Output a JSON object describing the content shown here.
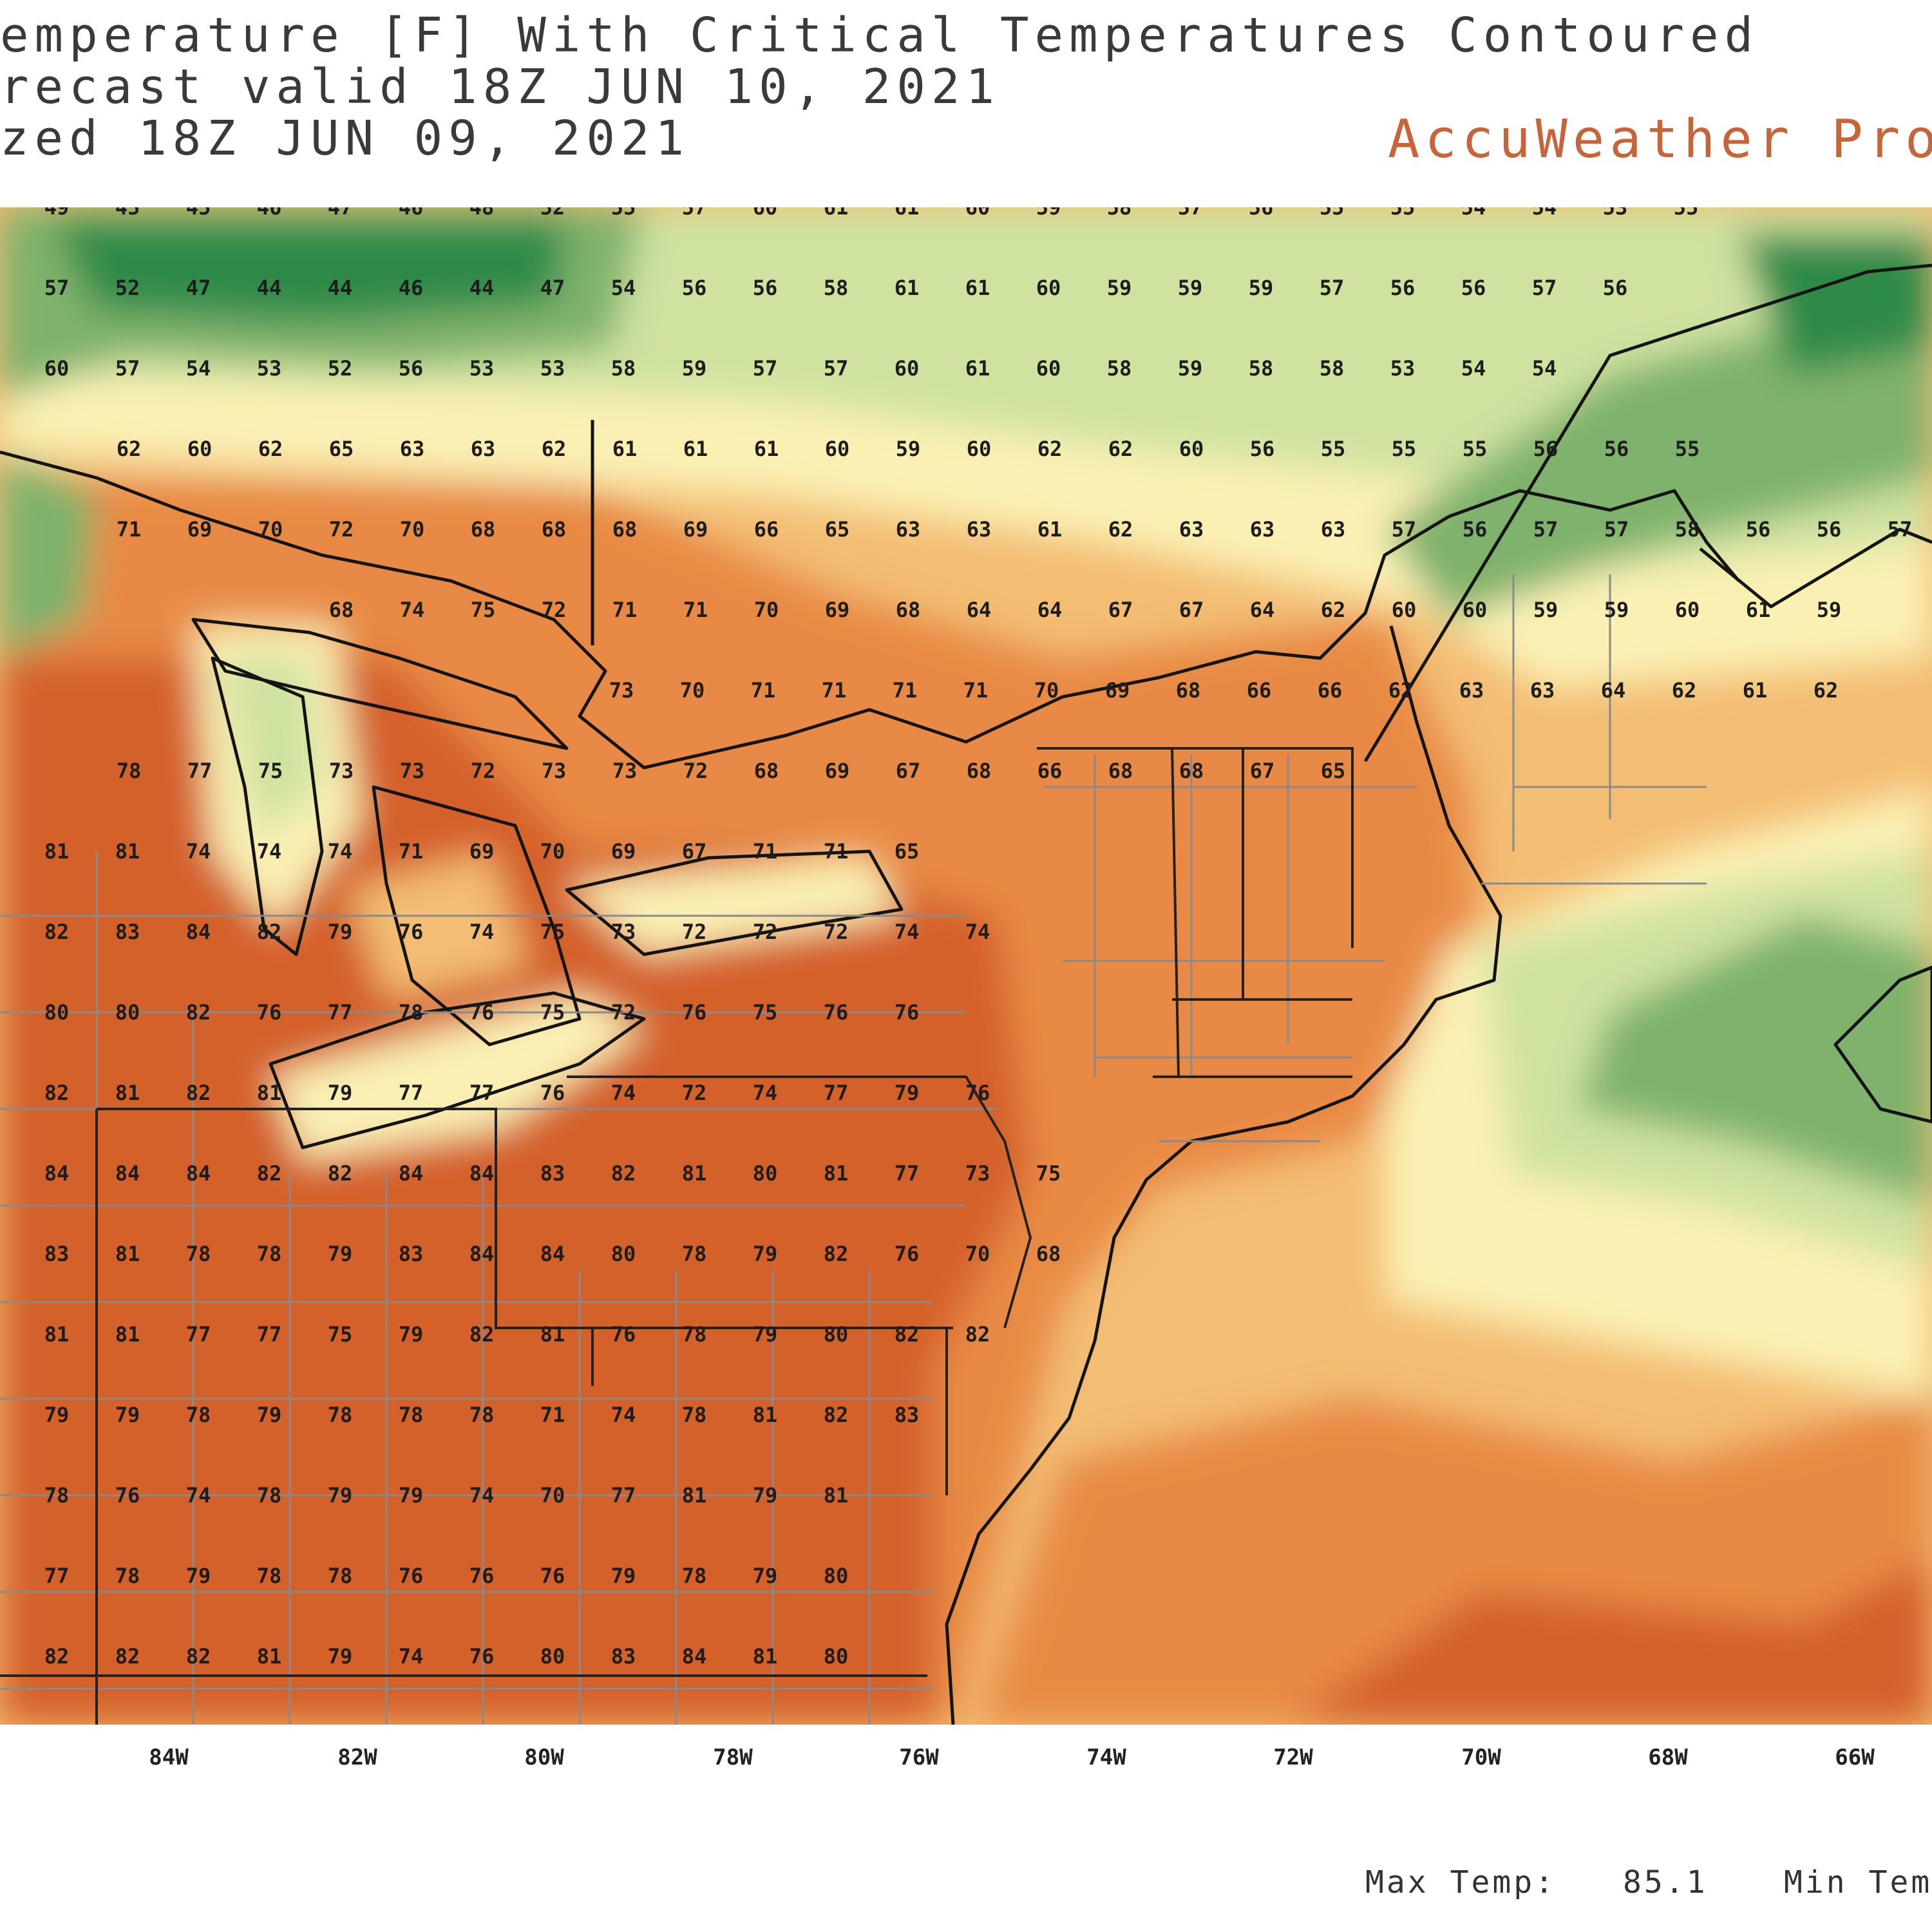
{
  "header": {
    "line1": "emperature [F] With Critical Temperatures Contoured",
    "line2": "recast valid 18Z JUN 10, 2021",
    "line3": "zed 18Z JUN 09, 2021",
    "brand": "AccuWeather Pro"
  },
  "axis": {
    "longitude_labels": [
      "84W",
      "82W",
      "80W",
      "78W",
      "76W",
      "74W",
      "72W",
      "70W",
      "68W",
      "66W"
    ]
  },
  "stats": {
    "max_label": "Max Temp:",
    "max_value": "85.1",
    "min_label": "Min Tem"
  },
  "colors": {
    "hot": "#d4612a",
    "warm": "#e88a45",
    "mild": "#f3bd74",
    "cool": "#faf0b4",
    "cooler": "#cfe2a0",
    "cold": "#7fb26c",
    "coldest": "#2f8a48"
  },
  "temperature_rows": [
    [
      "49",
      "45",
      "45",
      "46",
      "47",
      "46",
      "48",
      "52",
      "55",
      "57",
      "60",
      "61",
      "61",
      "60",
      "59",
      "58",
      "57",
      "56",
      "55",
      "55",
      "54",
      "54",
      "53",
      "55"
    ],
    [
      "57",
      "52",
      "47",
      "44",
      "44",
      "46",
      "44",
      "47",
      "54",
      "56",
      "56",
      "58",
      "61",
      "61",
      "60",
      "59",
      "59",
      "59",
      "57",
      "56",
      "56",
      "57",
      "56"
    ],
    [
      "60",
      "57",
      "54",
      "53",
      "52",
      "56",
      "53",
      "53",
      "58",
      "59",
      "57",
      "57",
      "60",
      "61",
      "60",
      "58",
      "59",
      "58",
      "58",
      "53",
      "54",
      "54"
    ],
    [
      "62",
      "60",
      "62",
      "65",
      "63",
      "63",
      "62",
      "61",
      "61",
      "61",
      "60",
      "59",
      "60",
      "62",
      "62",
      "60",
      "56",
      "55",
      "55",
      "55",
      "56",
      "56",
      "55"
    ],
    [
      "71",
      "69",
      "70",
      "72",
      "70",
      "68",
      "68",
      "68",
      "69",
      "66",
      "65",
      "63",
      "63",
      "61",
      "62",
      "63",
      "63",
      "63",
      "57",
      "56",
      "57",
      "57",
      "58",
      "56",
      "56",
      "57"
    ],
    [
      "68",
      "74",
      "75",
      "72",
      "71",
      "71",
      "70",
      "69",
      "68",
      "64",
      "64",
      "67",
      "67",
      "64",
      "62",
      "60",
      "60",
      "59",
      "59",
      "60",
      "61",
      "59"
    ],
    [
      "73",
      "70",
      "71",
      "71",
      "71",
      "71",
      "70",
      "69",
      "68",
      "66",
      "66",
      "62",
      "63",
      "63",
      "64",
      "62",
      "61",
      "62"
    ],
    [
      "78",
      "77",
      "75",
      "73",
      "73",
      "72",
      "73",
      "73",
      "72",
      "68",
      "69",
      "67",
      "68",
      "66",
      "68",
      "68",
      "67",
      "65"
    ],
    [
      "81",
      "81",
      "74",
      "74",
      "74",
      "71",
      "69",
      "70",
      "69",
      "67",
      "71",
      "71",
      "65"
    ],
    [
      "82",
      "83",
      "84",
      "82",
      "79",
      "76",
      "74",
      "75",
      "73",
      "72",
      "72",
      "72",
      "74",
      "74"
    ],
    [
      "80",
      "80",
      "82",
      "76",
      "77",
      "78",
      "76",
      "75",
      "72",
      "76",
      "75",
      "76",
      "76"
    ],
    [
      "82",
      "81",
      "82",
      "81",
      "79",
      "77",
      "77",
      "76",
      "74",
      "72",
      "74",
      "77",
      "79",
      "76"
    ],
    [
      "84",
      "84",
      "84",
      "82",
      "82",
      "84",
      "84",
      "83",
      "82",
      "81",
      "80",
      "81",
      "77",
      "73",
      "75"
    ],
    [
      "83",
      "81",
      "78",
      "78",
      "79",
      "83",
      "84",
      "84",
      "80",
      "78",
      "79",
      "82",
      "76",
      "70",
      "68"
    ],
    [
      "81",
      "81",
      "77",
      "77",
      "75",
      "79",
      "82",
      "81",
      "76",
      "78",
      "79",
      "80",
      "82",
      "82"
    ],
    [
      "79",
      "79",
      "78",
      "79",
      "78",
      "78",
      "78",
      "71",
      "74",
      "78",
      "81",
      "82",
      "83"
    ],
    [
      "78",
      "76",
      "74",
      "78",
      "79",
      "79",
      "74",
      "70",
      "77",
      "81",
      "79",
      "81"
    ],
    [
      "77",
      "78",
      "79",
      "78",
      "78",
      "76",
      "76",
      "76",
      "79",
      "78",
      "79",
      "80"
    ],
    [
      "82",
      "82",
      "82",
      "81",
      "79",
      "74",
      "76",
      "80",
      "83",
      "84",
      "81",
      "80"
    ]
  ]
}
